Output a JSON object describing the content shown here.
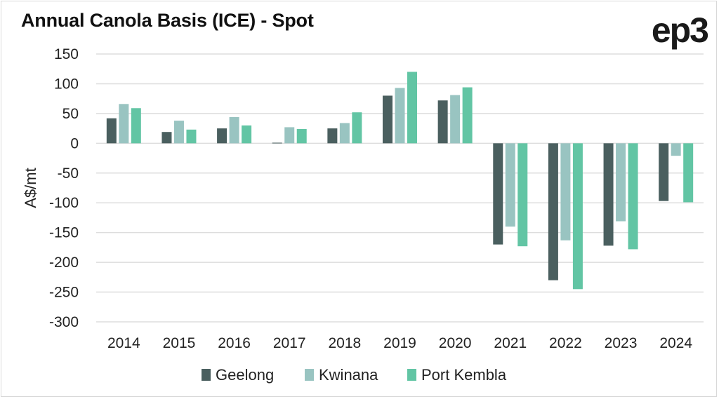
{
  "logo": "ep3",
  "chart_data": {
    "type": "bar",
    "title": "Annual Canola Basis (ICE) - Spot",
    "xlabel": "",
    "ylabel": "A$/mt",
    "ylim": [
      -300,
      150
    ],
    "yticks": [
      150,
      100,
      50,
      0,
      -50,
      -100,
      -150,
      -200,
      -250,
      -300
    ],
    "grid": true,
    "legend_position": "bottom",
    "categories": [
      "2014",
      "2015",
      "2016",
      "2017",
      "2018",
      "2019",
      "2020",
      "2021",
      "2022",
      "2023",
      "2024"
    ],
    "series": [
      {
        "name": "Geelong",
        "color": "#4a5f5f",
        "values": [
          42,
          19,
          25,
          1,
          25,
          80,
          72,
          -170,
          -230,
          -172,
          -97
        ]
      },
      {
        "name": "Kwinana",
        "color": "#99c4c1",
        "values": [
          66,
          38,
          44,
          27,
          34,
          93,
          81,
          -140,
          -163,
          -131,
          -21
        ]
      },
      {
        "name": "Port Kembla",
        "color": "#62c5a4",
        "values": [
          59,
          23,
          30,
          24,
          52,
          120,
          94,
          -173,
          -245,
          -178,
          -99
        ]
      }
    ]
  }
}
